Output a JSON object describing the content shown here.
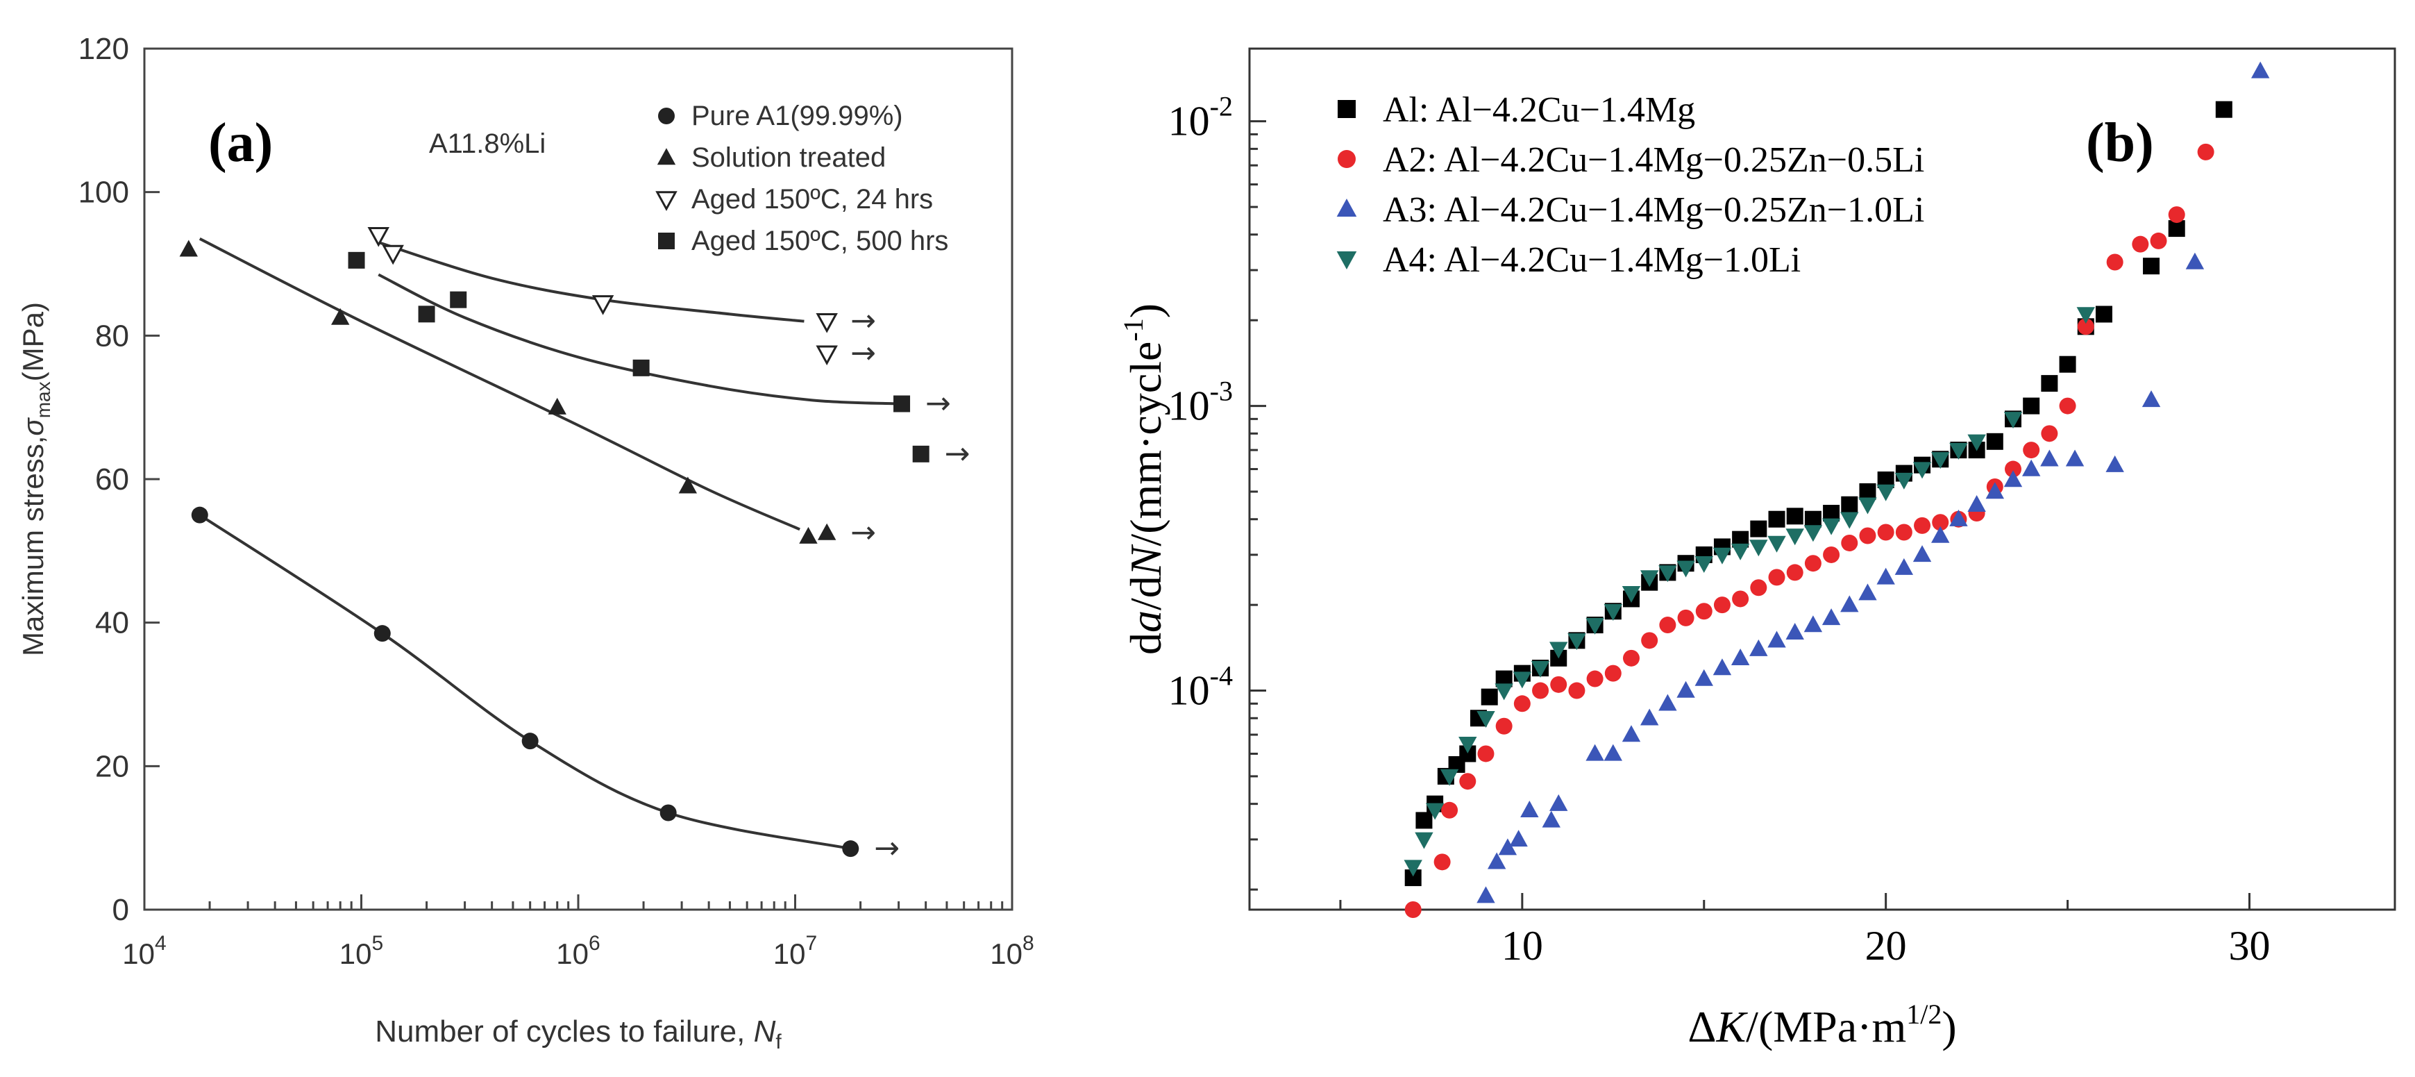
{
  "chart_data": [
    {
      "panel_label": "(a)",
      "type": "scatter",
      "annotation": "A11.8%Li",
      "xlabel_prefix": "Number of cycles to failure, ",
      "xlabel_var": "N",
      "xlabel_sub": "f",
      "ylabel_prefix": "Maximum stress,",
      "ylabel_var": "σ",
      "ylabel_sub": "max",
      "ylabel_suffix": "(MPa)",
      "xscale": "log",
      "xlim": [
        10000,
        100000000
      ],
      "ylim": [
        0,
        120
      ],
      "x_ticks": [
        {
          "value": 10000,
          "base": "10",
          "exp": "4"
        },
        {
          "value": 100000,
          "base": "10",
          "exp": "5"
        },
        {
          "value": 1000000,
          "base": "10",
          "exp": "6"
        },
        {
          "value": 10000000,
          "base": "10",
          "exp": "7"
        },
        {
          "value": 100000000,
          "base": "10",
          "exp": "8"
        }
      ],
      "y_ticks": [
        "0",
        "20",
        "40",
        "60",
        "80",
        "100",
        "120"
      ],
      "grid": false,
      "legend_position": "top-right",
      "runout_symbol": "→",
      "series": [
        {
          "name": "Pure A1(99.99%)",
          "marker": "circle",
          "points": [
            [
              18000,
              55
            ],
            [
              125000,
              38.5
            ],
            [
              600000,
              23.5
            ],
            [
              2600000,
              13.5
            ],
            [
              18000000,
              8.5
            ]
          ],
          "runouts": [
            [
              18000000,
              8.5
            ]
          ],
          "fit": [
            [
              18000,
              55
            ],
            [
              125000,
              38.5
            ],
            [
              600000,
              23.5
            ],
            [
              2600000,
              13.5
            ],
            [
              18000000,
              8.5
            ]
          ]
        },
        {
          "name": "Solution treated",
          "marker": "triangle",
          "points": [
            [
              16000,
              92
            ],
            [
              80000,
              82.5
            ],
            [
              800000,
              70
            ],
            [
              3200000,
              59
            ],
            [
              11500000,
              52
            ],
            [
              14000000,
              52.5
            ]
          ],
          "runouts": [
            [
              14000000,
              52.5
            ]
          ],
          "fit": [
            [
              18000,
              93.5
            ],
            [
              100000,
              82
            ],
            [
              1000000,
              67.5
            ],
            [
              4000000,
              58.5
            ],
            [
              10500000,
              53
            ]
          ]
        },
        {
          "name": "Aged 150ºC, 24 hrs",
          "marker": "triangle-down",
          "points": [
            [
              120000,
              94
            ],
            [
              140000,
              91.5
            ],
            [
              1300000,
              84.5
            ],
            [
              14000000,
              82
            ],
            [
              14000000,
              77.5
            ]
          ],
          "runouts": [
            [
              14000000,
              82
            ],
            [
              14000000,
              77.5
            ]
          ],
          "fit": [
            [
              120000,
              93
            ],
            [
              400000,
              88
            ],
            [
              1300000,
              85
            ],
            [
              5000000,
              83
            ],
            [
              11000000,
              82
            ]
          ]
        },
        {
          "name": "Aged 150ºC, 500 hrs",
          "marker": "square",
          "points": [
            [
              95000,
              90.5
            ],
            [
              200000,
              83
            ],
            [
              280000,
              85
            ],
            [
              1950000,
              75.5
            ],
            [
              31000000,
              70.5
            ],
            [
              38000000,
              63.5
            ]
          ],
          "runouts": [
            [
              31000000,
              70.5
            ],
            [
              38000000,
              63.5
            ]
          ],
          "fit": [
            [
              120000,
              88.5
            ],
            [
              300000,
              82.5
            ],
            [
              1000000,
              77
            ],
            [
              4000000,
              73
            ],
            [
              12000000,
              71
            ],
            [
              30000000,
              70.5
            ]
          ]
        }
      ]
    },
    {
      "panel_label": "(b)",
      "type": "scatter",
      "xlabel_delta": "Δ",
      "xlabel_var": "K",
      "xlabel_unit": "/(MPa·m",
      "xlabel_exp": "1/2",
      "xlabel_close": ")",
      "ylabel_d1": "d",
      "ylabel_a": "a",
      "ylabel_mid": "/d",
      "ylabel_N": "N",
      "ylabel_unit": "/(mm·cycle",
      "ylabel_exp": "-1",
      "ylabel_close": ")",
      "yscale": "log",
      "xlim": [
        2.5,
        34
      ],
      "ylim": [
        1.7e-05,
        0.018
      ],
      "x_ticks": [
        "10",
        "20",
        "30"
      ],
      "y_ticks": [
        {
          "value": 0.0001,
          "base": "10",
          "exp": "-4"
        },
        {
          "value": 0.001,
          "base": "10",
          "exp": "-3"
        },
        {
          "value": 0.01,
          "base": "10",
          "exp": "-2"
        }
      ],
      "grid": false,
      "legend_position": "top-left",
      "series": [
        {
          "name": "Al: Al−4.2Cu−1.4Mg",
          "color": "#000000",
          "marker": "square",
          "points": [
            [
              7,
              2.2e-05
            ],
            [
              7.3,
              3.5e-05
            ],
            [
              7.6,
              4e-05
            ],
            [
              7.9,
              5e-05
            ],
            [
              8.2,
              5.5e-05
            ],
            [
              8.5,
              6e-05
            ],
            [
              8.8,
              8e-05
            ],
            [
              9.1,
              9.5e-05
            ],
            [
              9.5,
              0.00011
            ],
            [
              10,
              0.000115
            ],
            [
              10.5,
              0.00012
            ],
            [
              11,
              0.00013
            ],
            [
              11.5,
              0.00015
            ],
            [
              12,
              0.00017
            ],
            [
              12.5,
              0.00019
            ],
            [
              13,
              0.00021
            ],
            [
              13.5,
              0.00024
            ],
            [
              14,
              0.00026
            ],
            [
              14.5,
              0.00028
            ],
            [
              15,
              0.0003
            ],
            [
              15.5,
              0.00032
            ],
            [
              16,
              0.00034
            ],
            [
              16.5,
              0.00037
            ],
            [
              17,
              0.0004
            ],
            [
              17.5,
              0.00041
            ],
            [
              18,
              0.0004
            ],
            [
              18.5,
              0.00042
            ],
            [
              19,
              0.00045
            ],
            [
              19.5,
              0.0005
            ],
            [
              20,
              0.00055
            ],
            [
              20.5,
              0.00058
            ],
            [
              21,
              0.00062
            ],
            [
              21.5,
              0.00065
            ],
            [
              22,
              0.0007
            ],
            [
              22.5,
              0.0007
            ],
            [
              23,
              0.00075
            ],
            [
              23.5,
              0.0009
            ],
            [
              24,
              0.001
            ],
            [
              24.5,
              0.0012
            ],
            [
              25,
              0.0014
            ],
            [
              25.5,
              0.0019
            ],
            [
              26,
              0.0021
            ],
            [
              27.3,
              0.0031
            ],
            [
              28,
              0.0042
            ],
            [
              29.3,
              0.011
            ]
          ]
        },
        {
          "name": "A2: Al−4.2Cu−1.4Mg−0.25Zn−0.5Li",
          "color": "#e8282c",
          "marker": "circle",
          "points": [
            [
              7,
              1.7e-05
            ],
            [
              7.8,
              2.5e-05
            ],
            [
              8,
              3.8e-05
            ],
            [
              8.5,
              4.8e-05
            ],
            [
              9,
              6e-05
            ],
            [
              9.5,
              7.5e-05
            ],
            [
              10,
              9e-05
            ],
            [
              10.5,
              0.0001
            ],
            [
              11,
              0.000105
            ],
            [
              11.5,
              0.0001
            ],
            [
              12,
              0.00011
            ],
            [
              12.5,
              0.000115
            ],
            [
              13,
              0.00013
            ],
            [
              13.5,
              0.00015
            ],
            [
              14,
              0.00017
            ],
            [
              14.5,
              0.00018
            ],
            [
              15,
              0.00019
            ],
            [
              15.5,
              0.0002
            ],
            [
              16,
              0.00021
            ],
            [
              16.5,
              0.00023
            ],
            [
              17,
              0.00025
            ],
            [
              17.5,
              0.00026
            ],
            [
              18,
              0.00028
            ],
            [
              18.5,
              0.0003
            ],
            [
              19,
              0.00033
            ],
            [
              19.5,
              0.00035
            ],
            [
              20,
              0.00036
            ],
            [
              20.5,
              0.00036
            ],
            [
              21,
              0.00038
            ],
            [
              21.5,
              0.00039
            ],
            [
              22,
              0.0004
            ],
            [
              22.5,
              0.00042
            ],
            [
              23,
              0.00052
            ],
            [
              23.5,
              0.0006
            ],
            [
              24,
              0.0007
            ],
            [
              24.5,
              0.0008
            ],
            [
              25,
              0.001
            ],
            [
              25.5,
              0.0019
            ],
            [
              26.3,
              0.0032
            ],
            [
              27,
              0.0037
            ],
            [
              27.5,
              0.0038
            ],
            [
              28,
              0.0047
            ],
            [
              28.8,
              0.0078
            ]
          ]
        },
        {
          "name": "A3: Al−4.2Cu−1.4Mg−0.25Zn−1.0Li",
          "color": "#3b56b8",
          "marker": "triangle",
          "points": [
            [
              9,
              1.9e-05
            ],
            [
              9.3,
              2.5e-05
            ],
            [
              9.6,
              2.8e-05
            ],
            [
              9.9,
              3e-05
            ],
            [
              10.2,
              3.8e-05
            ],
            [
              10.8,
              3.5e-05
            ],
            [
              11,
              4e-05
            ],
            [
              12,
              6e-05
            ],
            [
              12.5,
              6e-05
            ],
            [
              13,
              7e-05
            ],
            [
              13.5,
              8e-05
            ],
            [
              14,
              9e-05
            ],
            [
              14.5,
              0.0001
            ],
            [
              15,
              0.00011
            ],
            [
              15.5,
              0.00012
            ],
            [
              16,
              0.00013
            ],
            [
              16.5,
              0.00014
            ],
            [
              17,
              0.00015
            ],
            [
              17.5,
              0.00016
            ],
            [
              18,
              0.00017
            ],
            [
              18.5,
              0.00018
            ],
            [
              19,
              0.0002
            ],
            [
              19.5,
              0.00022
            ],
            [
              20,
              0.00025
            ],
            [
              20.5,
              0.00027
            ],
            [
              21,
              0.0003
            ],
            [
              21.5,
              0.00035
            ],
            [
              22,
              0.0004
            ],
            [
              22.5,
              0.00045
            ],
            [
              23,
              0.0005
            ],
            [
              23.5,
              0.00055
            ],
            [
              24,
              0.0006
            ],
            [
              24.5,
              0.00065
            ],
            [
              25.2,
              0.00065
            ],
            [
              26.3,
              0.00062
            ],
            [
              27.3,
              0.00105
            ],
            [
              28.5,
              0.0032
            ],
            [
              30.3,
              0.015
            ]
          ]
        },
        {
          "name": "A4: Al−4.2Cu−1.4Mg−1.0Li",
          "color": "#1e6e64",
          "marker": "triangle-down",
          "points": [
            [
              7,
              2.4e-05
            ],
            [
              7.3,
              3e-05
            ],
            [
              7.6,
              3.8e-05
            ],
            [
              8,
              5e-05
            ],
            [
              8.5,
              6.5e-05
            ],
            [
              9,
              8e-05
            ],
            [
              9.5,
              0.0001
            ],
            [
              10,
              0.00011
            ],
            [
              10.5,
              0.00012
            ],
            [
              11,
              0.00014
            ],
            [
              11.5,
              0.00015
            ],
            [
              12,
              0.00017
            ],
            [
              12.5,
              0.00019
            ],
            [
              13,
              0.00022
            ],
            [
              13.5,
              0.00025
            ],
            [
              14,
              0.00026
            ],
            [
              14.5,
              0.00027
            ],
            [
              15,
              0.00028
            ],
            [
              15.5,
              0.0003
            ],
            [
              16,
              0.00031
            ],
            [
              16.5,
              0.00032
            ],
            [
              17,
              0.00033
            ],
            [
              17.5,
              0.00035
            ],
            [
              18,
              0.00036
            ],
            [
              18.5,
              0.00038
            ],
            [
              19,
              0.0004
            ],
            [
              19.5,
              0.00045
            ],
            [
              20,
              0.0005
            ],
            [
              20.5,
              0.00055
            ],
            [
              21,
              0.0006
            ],
            [
              21.5,
              0.00065
            ],
            [
              22,
              0.0007
            ],
            [
              22.5,
              0.00075
            ],
            [
              23.5,
              0.0009
            ],
            [
              25.5,
              0.0021
            ]
          ]
        }
      ]
    }
  ]
}
